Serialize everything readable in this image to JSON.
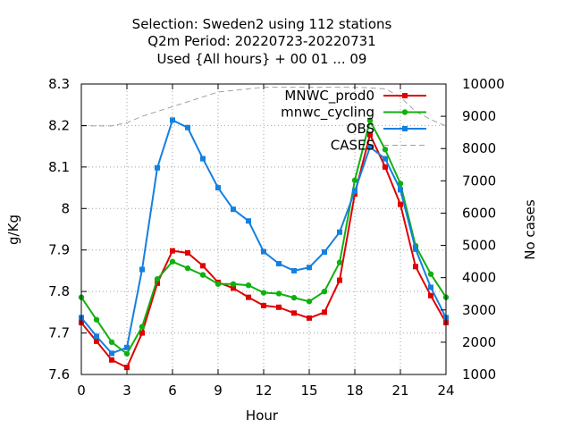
{
  "chart_data": {
    "type": "line",
    "title_lines": [
      "Selection: Sweden2 using   112 stations",
      "Q2m   Period: 20220723-20220731",
      "Used {All hours} + 00 01 ... 09"
    ],
    "xlabel": "Hour",
    "ylabel": "g/Kg",
    "y2label": "No cases",
    "x": [
      0,
      1,
      2,
      3,
      4,
      5,
      6,
      7,
      8,
      9,
      10,
      11,
      12,
      13,
      14,
      15,
      16,
      17,
      18,
      19,
      20,
      21,
      22,
      23,
      24
    ],
    "xlim": [
      0,
      24
    ],
    "xticks": [
      "0",
      "3",
      "6",
      "9",
      "12",
      "15",
      "18",
      "21",
      "24"
    ],
    "xtick_values": [
      0,
      3,
      6,
      9,
      12,
      15,
      18,
      21,
      24
    ],
    "ylim": [
      7.6,
      8.3
    ],
    "yticks": [
      "7.6",
      "7.7",
      "7.8",
      "7.9",
      "8",
      "8.1",
      "8.2",
      "8.3"
    ],
    "ytick_values": [
      7.6,
      7.7,
      7.8,
      7.9,
      8.0,
      8.1,
      8.2,
      8.3
    ],
    "y2lim": [
      1000,
      10000
    ],
    "y2ticks": [
      "1000",
      "2000",
      "3000",
      "4000",
      "5000",
      "6000",
      "7000",
      "8000",
      "9000",
      "10000"
    ],
    "y2tick_values": [
      1000,
      2000,
      3000,
      4000,
      5000,
      6000,
      7000,
      8000,
      9000,
      10000
    ],
    "grid": true,
    "legend_position": "top-right",
    "series": [
      {
        "name": "MNWC_prod0",
        "color": "#e00000",
        "axis": "y1",
        "marker": "square",
        "values": [
          7.725,
          7.68,
          7.635,
          7.617,
          7.7,
          7.82,
          7.898,
          7.893,
          7.862,
          7.822,
          7.808,
          7.786,
          7.766,
          7.762,
          7.748,
          7.736,
          7.75,
          7.827,
          8.035,
          8.178,
          8.1,
          8.01,
          7.86,
          7.79,
          7.725
        ]
      },
      {
        "name": "mnwc_cycling",
        "color": "#10b010",
        "axis": "y1",
        "marker": "circle",
        "values": [
          7.786,
          7.732,
          7.678,
          7.65,
          7.715,
          7.83,
          7.872,
          7.856,
          7.84,
          7.818,
          7.818,
          7.815,
          7.797,
          7.795,
          7.785,
          7.776,
          7.8,
          7.87,
          8.068,
          8.212,
          8.142,
          8.06,
          7.91,
          7.842,
          7.786
        ]
      },
      {
        "name": "OBS",
        "color": "#1480e0",
        "axis": "y1",
        "marker": "square",
        "values": [
          7.737,
          7.692,
          7.651,
          7.665,
          7.853,
          8.098,
          8.213,
          8.195,
          8.12,
          8.05,
          7.998,
          7.97,
          7.896,
          7.867,
          7.85,
          7.858,
          7.895,
          7.943,
          8.042,
          8.148,
          8.12,
          8.045,
          7.902,
          7.81,
          7.737
        ]
      },
      {
        "name": "CASES",
        "color": "#a0a0a0",
        "axis": "y2",
        "dashed": true,
        "x": [
          0,
          1,
          2,
          3,
          4,
          5,
          6,
          7,
          8,
          9,
          10,
          11,
          12,
          13,
          14,
          15,
          16,
          17,
          18,
          19,
          20,
          21,
          22,
          23,
          24
        ],
        "values": [
          8700,
          8700,
          8700,
          8800,
          9000,
          9150,
          9300,
          9450,
          9600,
          9750,
          9800,
          9850,
          9900,
          9900,
          9900,
          9900,
          9900,
          9900,
          9900,
          9880,
          9850,
          9600,
          9150,
          8900,
          8700
        ]
      }
    ]
  }
}
